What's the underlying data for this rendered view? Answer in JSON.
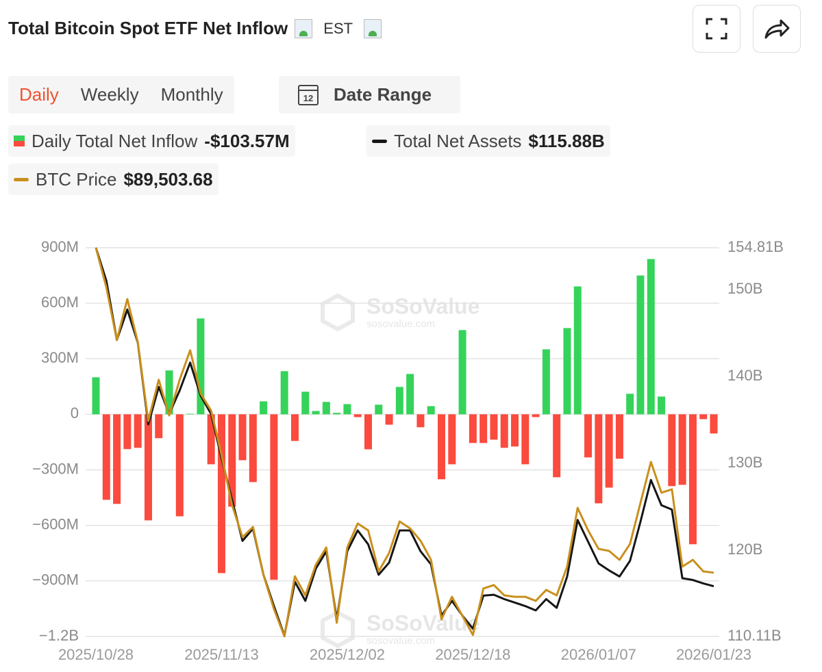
{
  "header": {
    "title": "Total Bitcoin Spot ETF Net Inflow",
    "timezone": "EST"
  },
  "tabs": {
    "items": [
      "Daily",
      "Weekly",
      "Monthly"
    ],
    "active": 0
  },
  "date_range": {
    "icon_text": "12",
    "label": "Date Range"
  },
  "watermark": {
    "brand": "SoSoValue",
    "site": "sosovalue.com"
  },
  "chart_data": {
    "type": "combo",
    "categories": [
      "2025/10/28",
      null,
      null,
      null,
      null,
      null,
      null,
      null,
      null,
      null,
      null,
      null,
      "2025/11/13",
      null,
      null,
      null,
      null,
      null,
      null,
      null,
      null,
      null,
      null,
      null,
      "2025/12/02",
      null,
      null,
      null,
      null,
      null,
      null,
      null,
      null,
      null,
      null,
      null,
      "2025/12/18",
      null,
      null,
      null,
      null,
      null,
      null,
      null,
      null,
      null,
      null,
      null,
      "2026/01/07",
      null,
      null,
      null,
      null,
      null,
      null,
      null,
      null,
      null,
      null,
      "2026/01/23"
    ],
    "ylim": [
      -1200,
      900
    ],
    "yticks": [
      {
        "value": -1200,
        "label": "−1.2B"
      },
      {
        "value": -900,
        "label": "−900M"
      },
      {
        "value": -600,
        "label": "−600M"
      },
      {
        "value": -300,
        "label": "−300M"
      },
      0,
      {
        "value": 300,
        "label": "300M"
      },
      {
        "value": 600,
        "label": "600M"
      },
      {
        "value": 900,
        "label": "900M"
      }
    ],
    "y2lim": [
      110.11,
      154.81
    ],
    "y2ticks": [
      {
        "value": 110.11,
        "label": "110.11B"
      },
      {
        "value": 120,
        "label": "120B"
      },
      {
        "value": 130,
        "label": "130B"
      },
      {
        "value": 140,
        "label": "140B"
      },
      {
        "value": 150,
        "label": "150B"
      },
      {
        "value": 154.81,
        "label": "154.81B"
      }
    ],
    "y3lim": [
      84500,
      115000
    ],
    "grid": true,
    "series": [
      {
        "name": "Daily Total Net Inflow",
        "type": "bar",
        "positive_color": "#35d35a",
        "negative_color": "#fb4a3e",
        "current_label": "-$103.57M",
        "values": [
          200,
          -462,
          -484,
          -188,
          -181,
          -573,
          -129,
          237,
          -551,
          3,
          518,
          -270,
          -858,
          -499,
          -248,
          -366,
          70,
          -894,
          233,
          -144,
          122,
          18,
          67,
          8,
          55,
          -15,
          -189,
          52,
          -56,
          148,
          218,
          -70,
          44,
          -351,
          -270,
          455,
          -155,
          -155,
          -137,
          -181,
          -174,
          -270,
          -15,
          351,
          -340,
          466,
          691,
          -233,
          -481,
          -396,
          -240,
          111,
          750,
          839,
          96,
          -388,
          -381,
          -702,
          -26,
          -103.57
        ]
      },
      {
        "name": "Total Net Assets",
        "type": "line",
        "axis": "y2",
        "color": "#161616",
        "current_label": "$115.88B",
        "values": [
          154.81,
          151.0,
          144.2,
          147.7,
          143.9,
          134.5,
          138.8,
          135.7,
          138.4,
          141.6,
          137.8,
          135.7,
          130.6,
          125.8,
          121.1,
          122.5,
          117.2,
          113.6,
          110.2,
          116.4,
          114.2,
          117.9,
          119.9,
          112.1,
          119.9,
          122.3,
          120.7,
          117.2,
          118.6,
          122.3,
          122.3,
          119.9,
          118.4,
          112.5,
          114.2,
          112.5,
          111.0,
          114.8,
          114.9,
          114.4,
          114.0,
          113.6,
          113.1,
          114.4,
          113.4,
          117.0,
          123.5,
          121.0,
          118.5,
          117.7,
          117.0,
          118.8,
          123.3,
          128.1,
          125.2,
          124.7,
          116.8,
          116.6,
          116.2,
          115.88
        ]
      },
      {
        "name": "BTC Price",
        "type": "line",
        "axis": "y3",
        "color": "#c98f1c",
        "current_label": "$89,503.68",
        "values": [
          115000,
          111885,
          107750,
          110970,
          107590,
          101410,
          104640,
          101840,
          104640,
          106950,
          103560,
          102220,
          98730,
          94810,
          92290,
          93090,
          89330,
          86650,
          84500,
          89220,
          87720,
          90130,
          91480,
          85570,
          91480,
          93360,
          92820,
          89600,
          91050,
          93520,
          92980,
          92010,
          90510,
          85840,
          87610,
          86110,
          84610,
          88260,
          88530,
          87720,
          87610,
          87610,
          87290,
          88150,
          87720,
          89980,
          94590,
          92820,
          91370,
          91210,
          90510,
          91750,
          94970,
          98190,
          95780,
          96040,
          89980,
          90510,
          89600,
          89503.68
        ]
      }
    ]
  }
}
